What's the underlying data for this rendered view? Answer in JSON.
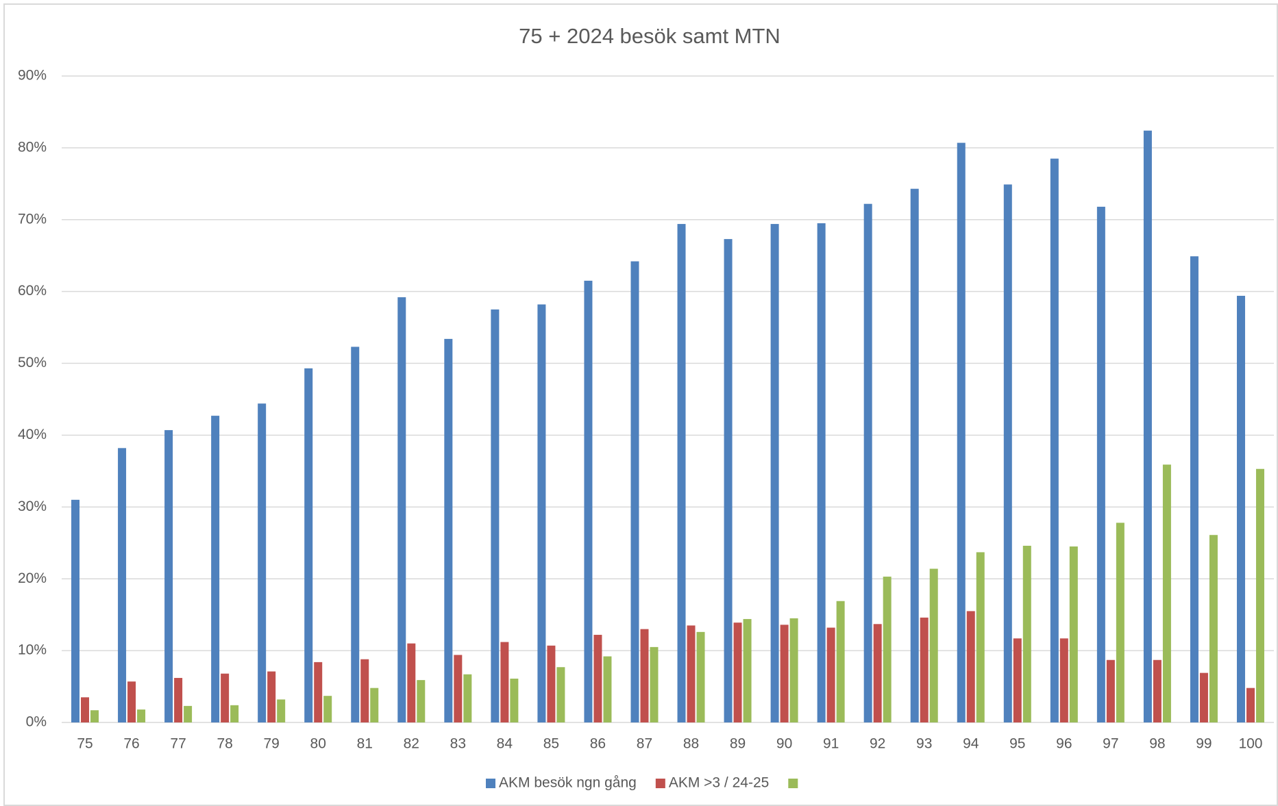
{
  "chart_data": {
    "type": "bar",
    "title": "75 +  2024 besök samt MTN",
    "categories": [
      "75",
      "76",
      "77",
      "78",
      "79",
      "80",
      "81",
      "82",
      "83",
      "84",
      "85",
      "86",
      "87",
      "88",
      "89",
      "90",
      "91",
      "92",
      "93",
      "94",
      "95",
      "96",
      "97",
      "98",
      "99",
      "100"
    ],
    "series": [
      {
        "name": "AKM besök ngn gång",
        "color": "#4f81bd",
        "values": [
          31.0,
          38.2,
          40.7,
          42.7,
          44.4,
          49.3,
          52.3,
          59.2,
          53.4,
          57.5,
          58.2,
          61.5,
          64.2,
          69.4,
          67.3,
          69.4,
          69.5,
          72.2,
          74.3,
          80.7,
          74.9,
          78.5,
          71.8,
          82.4,
          64.9,
          59.4
        ]
      },
      {
        "name": "AKM >3 / 24-25",
        "color": "#c0504d",
        "values": [
          3.5,
          5.7,
          6.2,
          6.8,
          7.1,
          8.4,
          8.8,
          11.0,
          9.4,
          11.2,
          10.7,
          12.2,
          13.0,
          13.5,
          13.9,
          13.6,
          13.2,
          13.7,
          14.6,
          15.5,
          11.7,
          11.7,
          8.7,
          8.7,
          6.9,
          4.8
        ]
      },
      {
        "color": "#9bbb59",
        "values": [
          1.7,
          1.8,
          2.3,
          2.4,
          3.2,
          3.7,
          4.8,
          5.9,
          6.7,
          6.1,
          7.7,
          9.2,
          10.5,
          12.6,
          14.4,
          14.5,
          16.9,
          20.3,
          21.4,
          23.7,
          24.6,
          24.5,
          27.8,
          35.9,
          26.1,
          35.3
        ]
      }
    ],
    "ylim": [
      0,
      90
    ],
    "yticks": [
      {
        "value": 0,
        "label": "0%"
      },
      {
        "value": 10,
        "label": "10%"
      },
      {
        "value": 20,
        "label": "20%"
      },
      {
        "value": 30,
        "label": "30%"
      },
      {
        "value": 40,
        "label": "40%"
      },
      {
        "value": 50,
        "label": "50%"
      },
      {
        "value": 60,
        "label": "60%"
      },
      {
        "value": 70,
        "label": "70%"
      },
      {
        "value": 80,
        "label": "80%"
      },
      {
        "value": 90,
        "label": "90%"
      }
    ],
    "grid": true,
    "legend": "bottom"
  }
}
